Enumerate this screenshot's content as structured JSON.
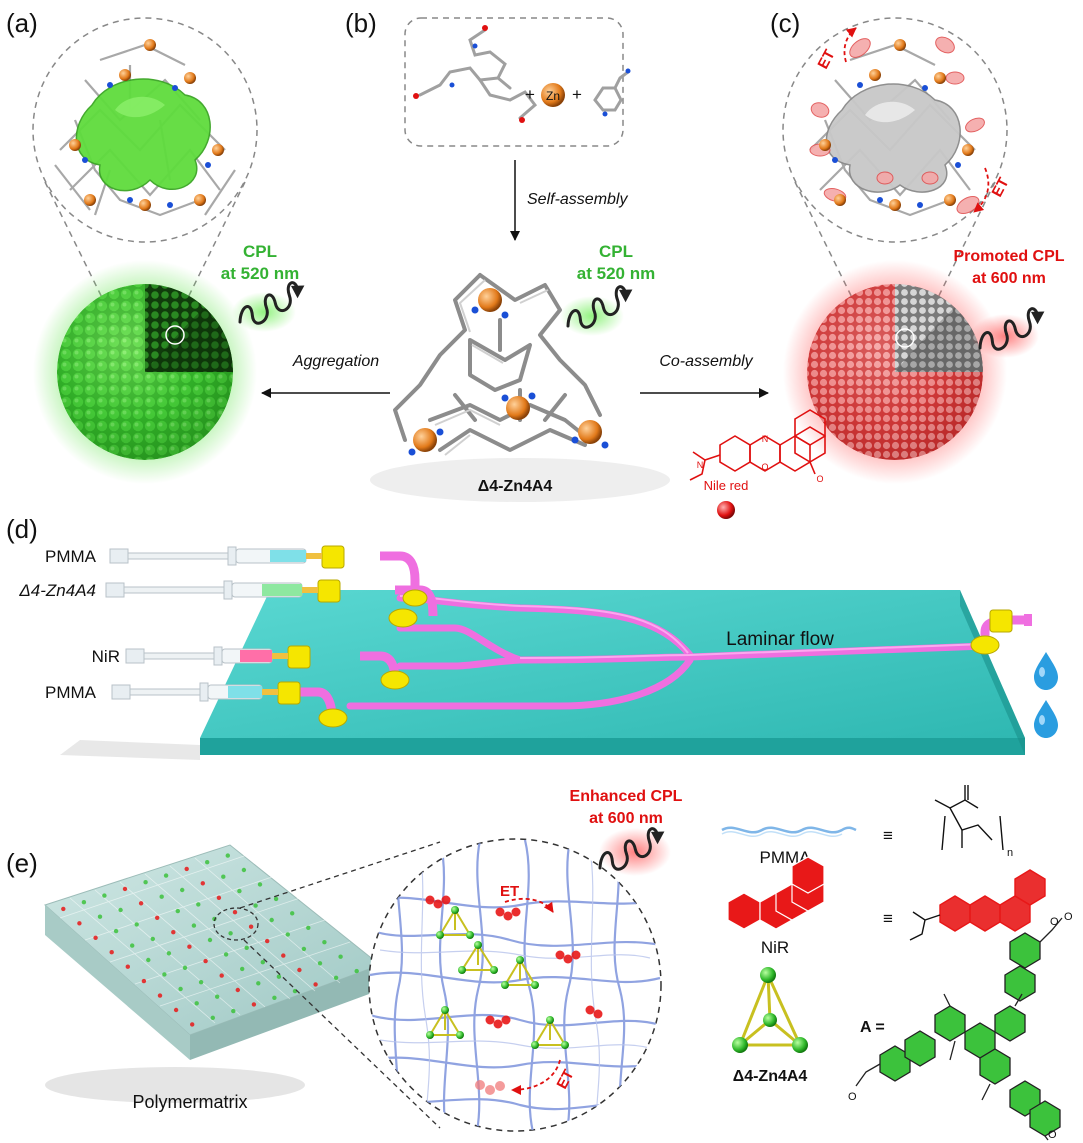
{
  "panels": {
    "a": {
      "letter": "(a)",
      "cpl_line1": "CPL",
      "cpl_line2": "at 520 nm",
      "arrow_label": "Aggregation",
      "colors": {
        "sphere": "#3cc23c",
        "surface": "#66dd44"
      }
    },
    "b": {
      "letter": "(b)",
      "plus_symbol": "+",
      "zn_label": "Zn",
      "arrow_label": "Self-assembly",
      "cpl_line1": "CPL",
      "cpl_line2": "at 520 nm",
      "cage_label": "Δ4-Zn4A4",
      "colors": {
        "zn_ball": "#e27a1a",
        "n_atom": "#1a4fd6"
      }
    },
    "c": {
      "letter": "(c)",
      "et_top": "ET",
      "et_right": "ET",
      "cpl_line1": "Promoted CPL",
      "cpl_line2": "at 600 nm",
      "arrow_label": "Co-assembly",
      "dye_label": "Nile red",
      "colors": {
        "sphere": "#e84848",
        "dye": "#e01010"
      }
    },
    "d": {
      "letter": "(d)",
      "syringes": [
        {
          "label": "PMMA",
          "fill": "#7fe0e8"
        },
        {
          "label": "Δ4-Zn4A4",
          "fill": "#8ee8a0"
        },
        {
          "label": "NiR",
          "fill": "#ff6fa8"
        },
        {
          "label": "PMMA",
          "fill": "#7fe0e8"
        }
      ],
      "flow_label": "Laminar flow",
      "colors": {
        "chip": "#3ec9c4",
        "channel": "#ef6fe0",
        "connector": "#f5e600",
        "droplet": "#2a9de0"
      }
    },
    "e": {
      "letter": "(e)",
      "film_label": "Polymermatrix",
      "cpl_line1": "Enhanced CPL",
      "cpl_line2": "at 600 nm",
      "et_top": "ET",
      "et_bottom": "ET",
      "legend": {
        "pmma_label": "PMMA",
        "nir_label": "NiR",
        "cage_label": "Δ4-Zn4A4",
        "equiv": "≡",
        "a_label": "A =",
        "subscript_n": "n"
      },
      "colors": {
        "fibers": "#7f94d6",
        "cage": "#3cc23c",
        "dye": "#e81818",
        "tetra_edge": "#c8c020"
      }
    }
  }
}
